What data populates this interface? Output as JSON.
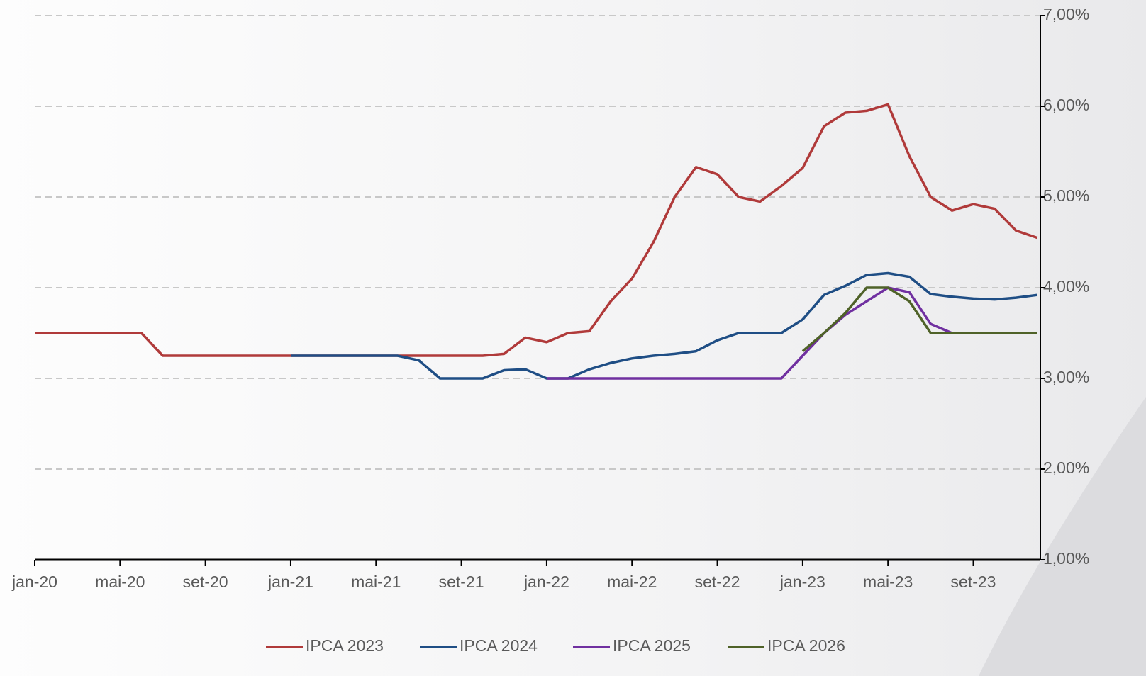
{
  "chart_data": {
    "type": "line",
    "categories": [
      "jan-20",
      null,
      null,
      null,
      "mai-20",
      null,
      null,
      null,
      "set-20",
      null,
      null,
      null,
      "jan-21",
      null,
      null,
      null,
      "mai-21",
      null,
      null,
      null,
      "set-21",
      null,
      null,
      null,
      "jan-22",
      null,
      null,
      null,
      "mai-22",
      null,
      null,
      null,
      "set-22",
      null,
      null,
      null,
      "jan-23",
      null,
      null,
      null,
      "mai-23",
      null,
      null,
      null,
      "set-23",
      null,
      null,
      null
    ],
    "series": [
      {
        "name": "IPCA 2023",
        "color": "#b03a3a",
        "values": [
          3.5,
          3.5,
          3.5,
          3.5,
          3.5,
          3.5,
          3.25,
          3.25,
          3.25,
          3.25,
          3.25,
          3.25,
          3.25,
          3.25,
          3.25,
          3.25,
          3.25,
          3.25,
          3.25,
          3.25,
          3.25,
          3.25,
          3.27,
          3.45,
          3.4,
          3.5,
          3.52,
          3.85,
          4.1,
          4.5,
          5.0,
          5.33,
          5.25,
          5.0,
          4.95,
          5.12,
          5.32,
          5.78,
          5.93,
          5.95,
          6.02,
          5.45,
          5.0,
          4.85,
          4.92,
          4.87,
          4.63,
          4.55
        ]
      },
      {
        "name": "IPCA 2024",
        "color": "#1f4e85",
        "values": [
          null,
          null,
          null,
          null,
          null,
          null,
          null,
          null,
          null,
          null,
          null,
          null,
          3.25,
          3.25,
          3.25,
          3.25,
          3.25,
          3.25,
          3.2,
          3.0,
          3.0,
          3.0,
          3.09,
          3.1,
          3.0,
          3.0,
          3.1,
          3.17,
          3.22,
          3.25,
          3.27,
          3.3,
          3.42,
          3.5,
          3.5,
          3.5,
          3.65,
          3.92,
          4.02,
          4.14,
          4.16,
          4.12,
          3.93,
          3.9,
          3.88,
          3.87,
          3.89,
          3.92
        ]
      },
      {
        "name": "IPCA 2025",
        "color": "#7030a0",
        "values": [
          null,
          null,
          null,
          null,
          null,
          null,
          null,
          null,
          null,
          null,
          null,
          null,
          null,
          null,
          null,
          null,
          null,
          null,
          null,
          null,
          null,
          null,
          null,
          null,
          3.0,
          3.0,
          3.0,
          3.0,
          3.0,
          3.0,
          3.0,
          3.0,
          3.0,
          3.0,
          3.0,
          3.0,
          3.25,
          3.5,
          3.7,
          3.85,
          4.0,
          3.95,
          3.6,
          3.5,
          3.5,
          3.5,
          3.5,
          3.5
        ]
      },
      {
        "name": "IPCA 2026",
        "color": "#4f6228",
        "values": [
          null,
          null,
          null,
          null,
          null,
          null,
          null,
          null,
          null,
          null,
          null,
          null,
          null,
          null,
          null,
          null,
          null,
          null,
          null,
          null,
          null,
          null,
          null,
          null,
          null,
          null,
          null,
          null,
          null,
          null,
          null,
          null,
          null,
          null,
          null,
          null,
          3.3,
          3.5,
          3.72,
          4.0,
          4.0,
          3.85,
          3.5,
          3.5,
          3.5,
          3.5,
          3.5,
          3.5
        ]
      }
    ],
    "ylim": [
      1,
      7
    ],
    "yticks": [
      {
        "value": 1,
        "label": "1,00%"
      },
      {
        "value": 2,
        "label": "2,00%"
      },
      {
        "value": 3,
        "label": "3,00%"
      },
      {
        "value": 4,
        "label": "4,00%"
      },
      {
        "value": 5,
        "label": "5,00%"
      },
      {
        "value": 6,
        "label": "6,00%"
      },
      {
        "value": 7,
        "label": "7,00%"
      }
    ],
    "grid": true
  }
}
